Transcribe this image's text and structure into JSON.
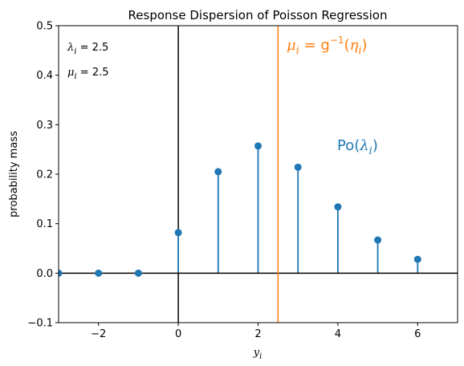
{
  "chart_data": {
    "type": "stem",
    "title": "Response Dispersion of Poisson Regression",
    "xlabel_base": "y",
    "xlabel_sub": "i",
    "ylabel": "probability mass",
    "xlim": [
      -3,
      7
    ],
    "ylim": [
      -0.1,
      0.5
    ],
    "xticks": [
      -2,
      0,
      2,
      4,
      6
    ],
    "yticks": [
      -0.1,
      0.0,
      0.1,
      0.2,
      0.3,
      0.4,
      0.5
    ],
    "xtick_labels": [
      "−2",
      "0",
      "2",
      "4",
      "6"
    ],
    "ytick_labels": [
      "−0.1",
      "0.0",
      "0.1",
      "0.2",
      "0.3",
      "0.4",
      "0.5"
    ],
    "series": [
      {
        "x": [
          -3,
          -2,
          -1,
          0,
          1,
          2,
          3,
          4,
          5,
          6
        ],
        "y": [
          0,
          0,
          0,
          0.082,
          0.205,
          0.257,
          0.214,
          0.134,
          0.067,
          0.028
        ],
        "color": "#1f77b4"
      }
    ],
    "vline": {
      "x": 2.5,
      "color": "#ff7f0e"
    },
    "annotations": {
      "lambda": {
        "sym": "λ",
        "sub": "i",
        "eq": " = 2.5"
      },
      "mu": {
        "sym": "μ",
        "sub": "i",
        "eq": " = 2.5"
      },
      "link": {
        "sym": "μ",
        "sub": "i",
        "eq": " = g",
        "sup": "−1",
        "paren_open": "(",
        "eta": "η",
        "eta_sub": "i",
        "paren_close": ")",
        "color": "#ff7f0e"
      },
      "dist": {
        "name": "Po(",
        "sym": "λ",
        "sub": "i",
        "close": ")",
        "color": "#1f77b4"
      }
    }
  }
}
